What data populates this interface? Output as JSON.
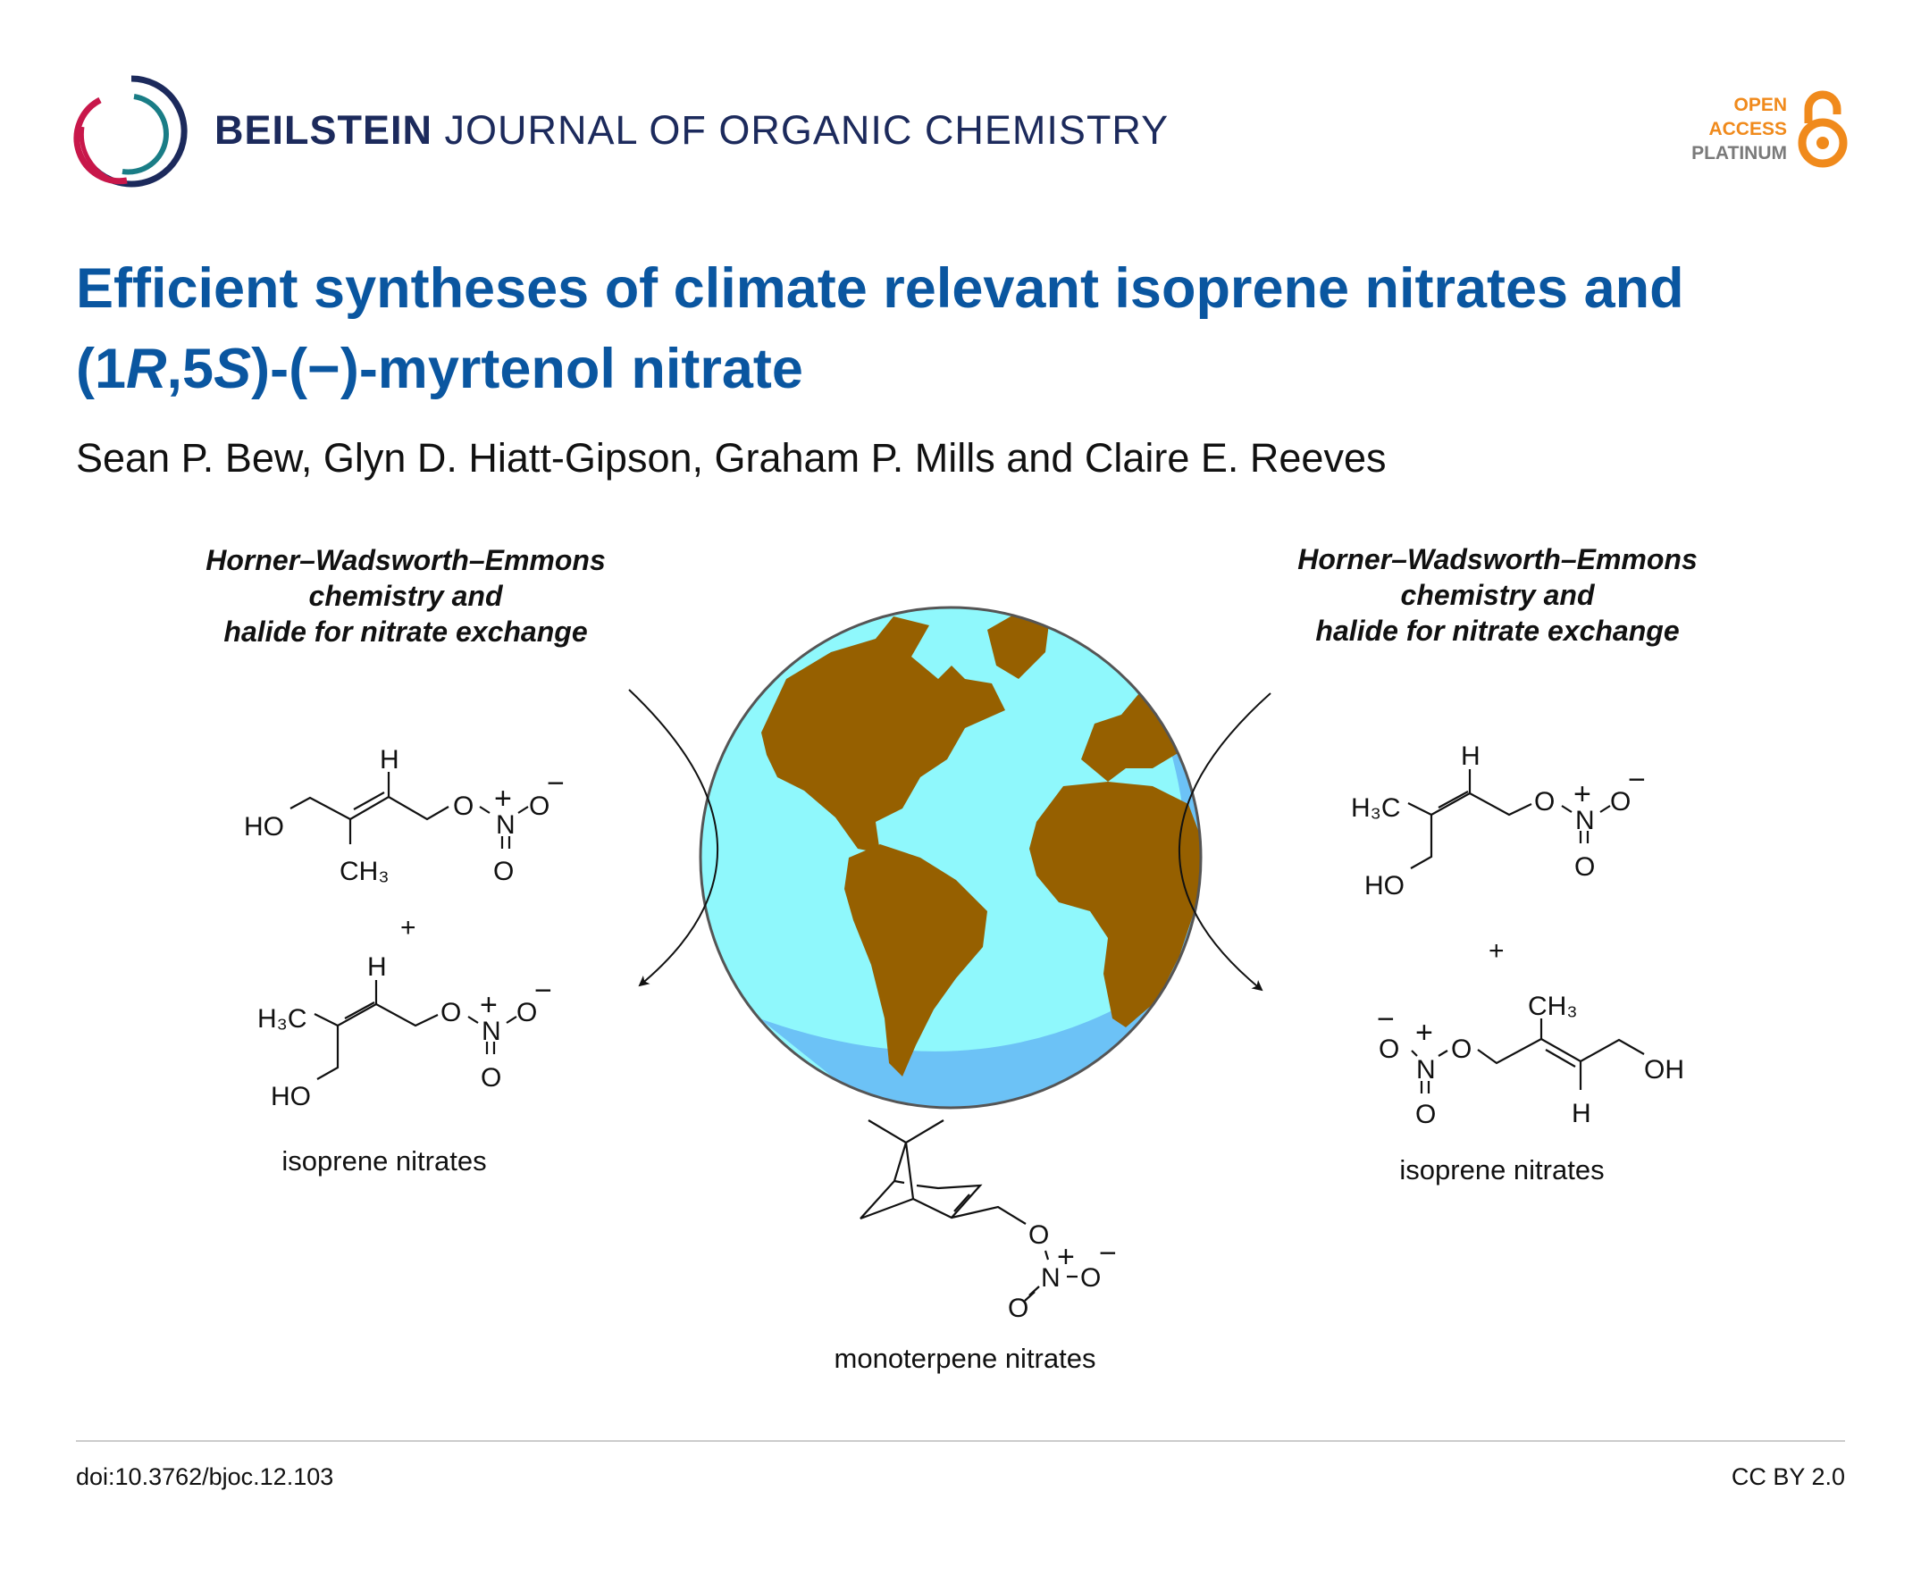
{
  "header": {
    "journal_bold": "BEILSTEIN",
    "journal_rest": "JOURNAL OF ORGANIC CHEMISTRY",
    "open_access": [
      "OPEN",
      "ACCESS",
      "PLATINUM"
    ],
    "colors": {
      "navy": "#1c2a5c",
      "crimson": "#c8174a",
      "teal": "#1a7d86",
      "orange": "#f08a1c",
      "gray": "#7a7a7a"
    }
  },
  "article": {
    "title_line1": "Efficient syntheses of climate relevant isoprene nitrates and",
    "title_line2_parts": [
      "(1",
      "R",
      ",5",
      "S",
      ")-(−)-myrtenol nitrate"
    ],
    "authors": "Sean P. Bew, Glyn D. Hiatt-Gipson, Graham P. Mills and Claire E. Reeves",
    "title_color": "#0a56a0"
  },
  "scheme": {
    "left_caption": [
      "Horner–Wadsworth–Emmons",
      "chemistry and",
      "halide for nitrate exchange"
    ],
    "right_caption": [
      "Horner–Wadsworth–Emmons",
      "chemistry and",
      "halide for nitrate exchange"
    ],
    "plus": "+",
    "isoprene_label": "isoprene nitrates",
    "monoterpene_label": "monoterpene nitrates",
    "atoms": {
      "HO": "HO",
      "OH": "OH",
      "H": "H",
      "CH3": "CH₃",
      "H3C": "H₃C",
      "O": "O",
      "N": "N",
      "plus_charge": "+",
      "minus_charge": "−"
    },
    "globe_colors": {
      "ocean": "#8ff8fc",
      "ocean_shade": "#6cc2f6",
      "land": "#966000",
      "rim": "#555555"
    }
  },
  "footer": {
    "doi": "doi:10.3762/bjoc.12.103",
    "license": "CC BY 2.0"
  }
}
